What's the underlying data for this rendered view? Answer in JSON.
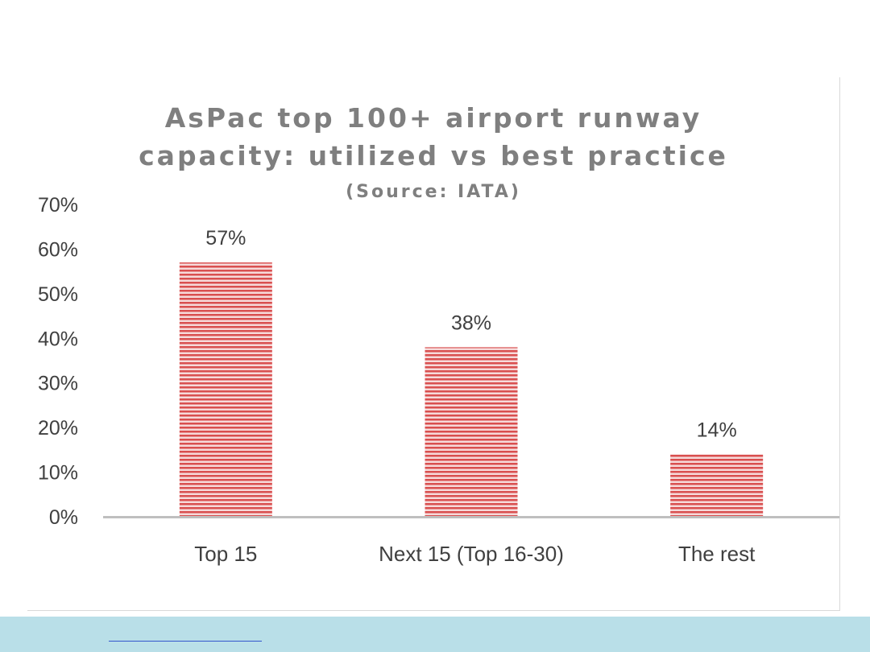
{
  "chart_data": {
    "type": "bar",
    "title_lines": [
      "AsPac top 100+ airport runway",
      "capacity: utilized vs best practice"
    ],
    "subtitle": "(Source: IATA)",
    "categories": [
      "Top 15",
      "Next 15 (Top 16-30)",
      "The rest"
    ],
    "values": [
      57,
      38,
      14
    ],
    "data_labels": [
      "57%",
      "38%",
      "14%"
    ],
    "ylim": [
      0,
      70
    ],
    "yticks": [
      0,
      10,
      20,
      30,
      40,
      50,
      60,
      70
    ],
    "ytick_labels": [
      "0%",
      "10%",
      "20%",
      "30%",
      "40%",
      "50%",
      "60%",
      "70%"
    ],
    "xlabel": "",
    "ylabel": "",
    "grid": false,
    "legend": "none",
    "colors": {
      "bar_stripe_dark": "#d94f4f",
      "bar_stripe_light": "#f6dada",
      "title": "#7f7f7f",
      "text": "#404040",
      "axis": "#bfbfbf"
    }
  }
}
